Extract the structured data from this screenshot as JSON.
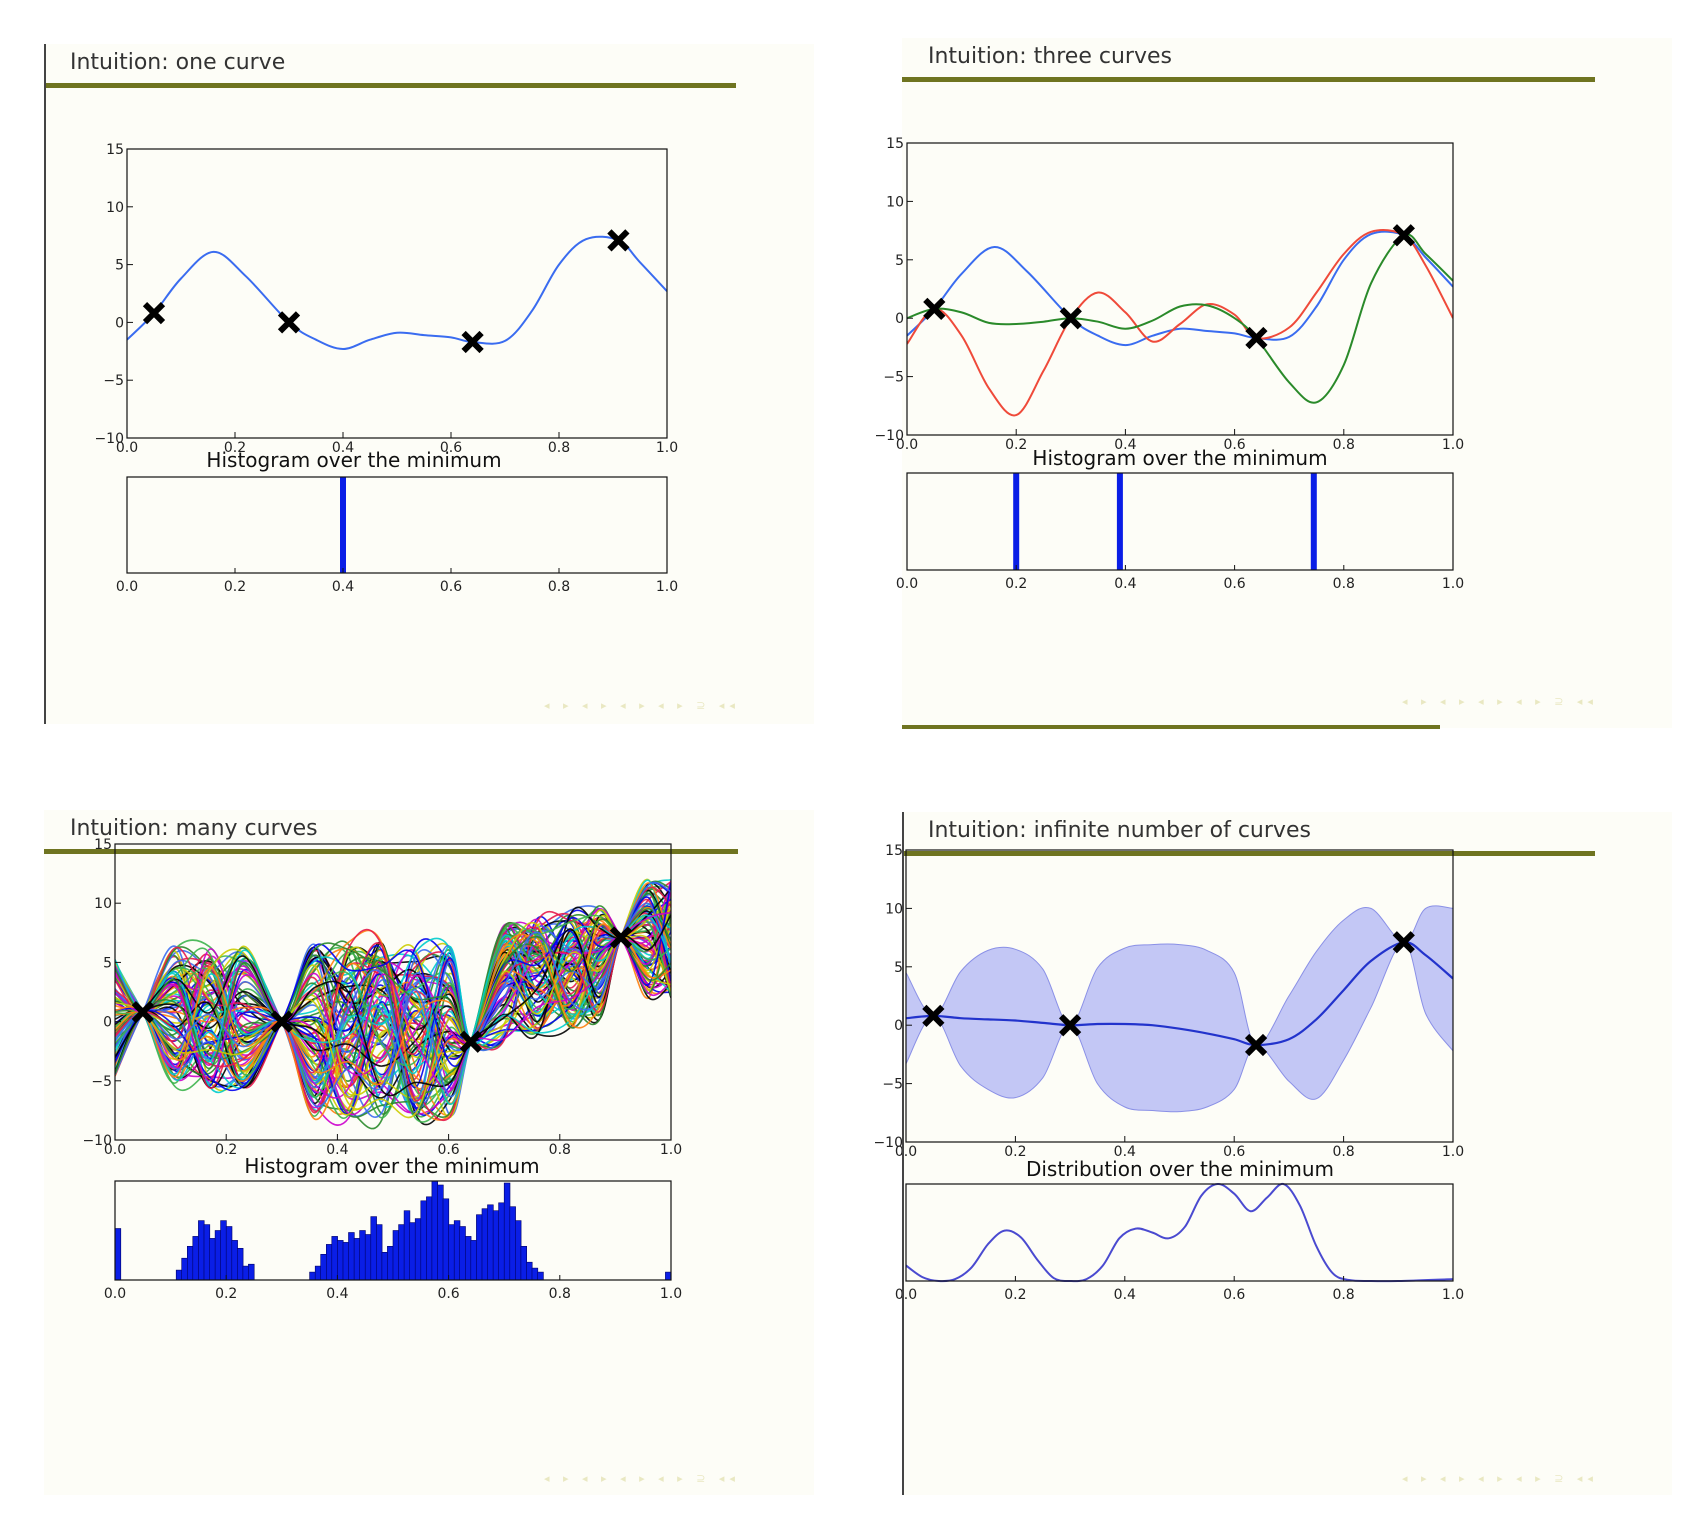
{
  "slides": [
    {
      "title": "Intuition: one curve",
      "hist_title": "Histogram over the minimum",
      "footer": "◂ ▸ ◂ ▸ ◂ ▸ ◂ ▸ ⊇ ◂◂"
    },
    {
      "title": "Intuition: three curves",
      "hist_title": "Histogram over the minimum",
      "footer": "◂ ▸ ◂ ▸ ◂ ▸ ◂ ▸ ⊇ ◂◂"
    },
    {
      "title": "Intuition: many curves",
      "hist_title": "Histogram over the minimum",
      "footer": "◂ ▸ ◂ ▸ ◂ ▸ ◂ ▸ ⊇ ◂◂"
    },
    {
      "title": "Intuition: infinite number of curves",
      "hist_title": "Distribution over the minimum",
      "footer": "◂ ▸ ◂ ▸ ◂ ▸ ◂ ▸ ⊇ ◂◂"
    }
  ],
  "axes": {
    "x_ticks": [
      "0.0",
      "0.2",
      "0.4",
      "0.6",
      "0.8",
      "1.0"
    ],
    "y_ticks": [
      "15",
      "10",
      "5",
      "0",
      "−5",
      "−10"
    ],
    "x_values": [
      0,
      0.2,
      0.4,
      0.6,
      0.8,
      1.0
    ],
    "y_values": [
      15,
      10,
      5,
      0,
      -5,
      -10
    ]
  },
  "colors": {
    "title_rule": "#6f7420",
    "hist_bar": "#0a1ee6",
    "curve_blue": "#3a6cf0",
    "curve_red": "#ef4a3a",
    "curve_green": "#2a8a2a",
    "mean_line": "#2233cc",
    "band_fill": "#b9bdf5",
    "band_edge": "#8a90e6"
  },
  "chart_data": [
    {
      "type": "line",
      "title": "Intuition: one curve",
      "xlim": [
        0,
        1
      ],
      "ylim": [
        -10,
        15
      ],
      "observations": {
        "x": [
          0.05,
          0.3,
          0.64,
          0.91
        ],
        "y": [
          0.8,
          0.0,
          -1.7,
          7.1
        ]
      },
      "series": [
        {
          "color": "#3a6cf0",
          "x": [
            0,
            0.05,
            0.1,
            0.16,
            0.22,
            0.3,
            0.35,
            0.4,
            0.45,
            0.5,
            0.55,
            0.6,
            0.64,
            0.7,
            0.75,
            0.8,
            0.85,
            0.91,
            0.95,
            1.0
          ],
          "y": [
            -1.5,
            0.8,
            3.8,
            6.1,
            4.0,
            0.0,
            -1.5,
            -2.3,
            -1.5,
            -0.9,
            -1.1,
            -1.3,
            -1.7,
            -1.6,
            1.0,
            5.0,
            7.2,
            7.1,
            5.2,
            2.7
          ]
        }
      ],
      "histogram": {
        "title": "Histogram over the minimum",
        "bins": [
          {
            "x": 0.4,
            "height": 1.0
          }
        ]
      }
    },
    {
      "type": "line",
      "title": "Intuition: three curves",
      "xlim": [
        0,
        1
      ],
      "ylim": [
        -10,
        15
      ],
      "observations": {
        "x": [
          0.05,
          0.3,
          0.64,
          0.91
        ],
        "y": [
          0.8,
          0.0,
          -1.7,
          7.1
        ]
      },
      "series": [
        {
          "color": "#3a6cf0",
          "x": [
            0,
            0.05,
            0.1,
            0.16,
            0.22,
            0.3,
            0.35,
            0.4,
            0.45,
            0.5,
            0.55,
            0.6,
            0.64,
            0.7,
            0.75,
            0.8,
            0.85,
            0.91,
            0.95,
            1.0
          ],
          "y": [
            -1.5,
            0.8,
            3.8,
            6.1,
            4.0,
            0.0,
            -1.5,
            -2.3,
            -1.5,
            -0.9,
            -1.1,
            -1.3,
            -1.7,
            -1.6,
            1.0,
            5.0,
            7.2,
            7.1,
            5.2,
            2.7
          ]
        },
        {
          "color": "#ef4a3a",
          "x": [
            0,
            0.05,
            0.1,
            0.15,
            0.2,
            0.25,
            0.3,
            0.35,
            0.4,
            0.45,
            0.5,
            0.55,
            0.6,
            0.64,
            0.7,
            0.75,
            0.8,
            0.85,
            0.91,
            0.95,
            1.0
          ],
          "y": [
            -2.2,
            0.8,
            -1.5,
            -6.0,
            -8.3,
            -4.5,
            0.0,
            2.2,
            0.5,
            -2.0,
            -0.5,
            1.2,
            0.3,
            -1.7,
            -0.8,
            2.2,
            5.5,
            7.4,
            7.1,
            4.5,
            0.0
          ]
        },
        {
          "color": "#2a8a2a",
          "x": [
            0,
            0.05,
            0.1,
            0.15,
            0.2,
            0.25,
            0.3,
            0.35,
            0.4,
            0.45,
            0.5,
            0.55,
            0.6,
            0.64,
            0.7,
            0.75,
            0.8,
            0.85,
            0.91,
            0.95,
            1.0
          ],
          "y": [
            0.0,
            0.8,
            0.5,
            -0.4,
            -0.5,
            -0.3,
            0.0,
            -0.3,
            -0.9,
            -0.2,
            1.0,
            1.1,
            0.0,
            -1.7,
            -5.5,
            -7.2,
            -4.0,
            3.0,
            7.1,
            5.5,
            3.2
          ]
        }
      ],
      "histogram": {
        "title": "Histogram over the minimum",
        "bins": [
          {
            "x": 0.2,
            "height": 1.0
          },
          {
            "x": 0.39,
            "height": 1.0
          },
          {
            "x": 0.745,
            "height": 1.0
          }
        ]
      }
    },
    {
      "type": "line",
      "title": "Intuition: many curves",
      "xlim": [
        0,
        1
      ],
      "ylim": [
        -10,
        15
      ],
      "observations": {
        "x": [
          0.05,
          0.3,
          0.64,
          0.91
        ],
        "y": [
          0.8,
          0.0,
          -1.7,
          7.1
        ]
      },
      "many_curves": {
        "count": 100,
        "colors": [
          "#e6194b",
          "#3cb44b",
          "#0000ee",
          "#00cccc",
          "#cc00cc",
          "#cccc00",
          "#000000",
          "#ff7f0e",
          "#2a8a2a",
          "#3a6cf0"
        ]
      },
      "histogram": {
        "title": "Histogram over the minimum",
        "bins": [
          {
            "x": 0.0,
            "height": 0.52
          },
          {
            "x": 0.11,
            "height": 0.1
          },
          {
            "x": 0.12,
            "height": 0.22
          },
          {
            "x": 0.13,
            "height": 0.34
          },
          {
            "x": 0.14,
            "height": 0.44
          },
          {
            "x": 0.15,
            "height": 0.6
          },
          {
            "x": 0.16,
            "height": 0.56
          },
          {
            "x": 0.17,
            "height": 0.42
          },
          {
            "x": 0.18,
            "height": 0.5
          },
          {
            "x": 0.19,
            "height": 0.6
          },
          {
            "x": 0.2,
            "height": 0.54
          },
          {
            "x": 0.21,
            "height": 0.4
          },
          {
            "x": 0.22,
            "height": 0.32
          },
          {
            "x": 0.23,
            "height": 0.14
          },
          {
            "x": 0.24,
            "height": 0.16
          },
          {
            "x": 0.35,
            "height": 0.08
          },
          {
            "x": 0.36,
            "height": 0.14
          },
          {
            "x": 0.37,
            "height": 0.26
          },
          {
            "x": 0.38,
            "height": 0.36
          },
          {
            "x": 0.39,
            "height": 0.44
          },
          {
            "x": 0.4,
            "height": 0.4
          },
          {
            "x": 0.41,
            "height": 0.38
          },
          {
            "x": 0.42,
            "height": 0.48
          },
          {
            "x": 0.43,
            "height": 0.42
          },
          {
            "x": 0.44,
            "height": 0.5
          },
          {
            "x": 0.45,
            "height": 0.46
          },
          {
            "x": 0.46,
            "height": 0.64
          },
          {
            "x": 0.47,
            "height": 0.56
          },
          {
            "x": 0.48,
            "height": 0.28
          },
          {
            "x": 0.49,
            "height": 0.34
          },
          {
            "x": 0.5,
            "height": 0.5
          },
          {
            "x": 0.51,
            "height": 0.56
          },
          {
            "x": 0.52,
            "height": 0.7
          },
          {
            "x": 0.53,
            "height": 0.58
          },
          {
            "x": 0.54,
            "height": 0.62
          },
          {
            "x": 0.55,
            "height": 0.8
          },
          {
            "x": 0.56,
            "height": 0.84
          },
          {
            "x": 0.57,
            "height": 1.0
          },
          {
            "x": 0.58,
            "height": 0.96
          },
          {
            "x": 0.59,
            "height": 0.82
          },
          {
            "x": 0.6,
            "height": 0.56
          },
          {
            "x": 0.61,
            "height": 0.6
          },
          {
            "x": 0.62,
            "height": 0.54
          },
          {
            "x": 0.63,
            "height": 0.44
          },
          {
            "x": 0.64,
            "height": 0.4
          },
          {
            "x": 0.65,
            "height": 0.66
          },
          {
            "x": 0.66,
            "height": 0.72
          },
          {
            "x": 0.67,
            "height": 0.76
          },
          {
            "x": 0.68,
            "height": 0.7
          },
          {
            "x": 0.69,
            "height": 0.78
          },
          {
            "x": 0.7,
            "height": 0.98
          },
          {
            "x": 0.71,
            "height": 0.74
          },
          {
            "x": 0.72,
            "height": 0.6
          },
          {
            "x": 0.73,
            "height": 0.34
          },
          {
            "x": 0.74,
            "height": 0.18
          },
          {
            "x": 0.75,
            "height": 0.12
          },
          {
            "x": 0.76,
            "height": 0.08
          },
          {
            "x": 0.99,
            "height": 0.08
          }
        ]
      }
    },
    {
      "type": "area",
      "title": "Intuition: infinite number of curves",
      "xlim": [
        0,
        1
      ],
      "ylim": [
        -10,
        15
      ],
      "observations": {
        "x": [
          0.05,
          0.3,
          0.64,
          0.91
        ],
        "y": [
          0.8,
          0.0,
          -1.7,
          7.1
        ]
      },
      "mean": {
        "color": "#2233cc",
        "x": [
          0,
          0.05,
          0.1,
          0.15,
          0.2,
          0.25,
          0.3,
          0.35,
          0.4,
          0.45,
          0.5,
          0.55,
          0.6,
          0.64,
          0.7,
          0.75,
          0.8,
          0.85,
          0.91,
          0.95,
          1.0
        ],
        "y": [
          0.6,
          0.8,
          0.6,
          0.5,
          0.4,
          0.2,
          0.0,
          0.1,
          0.1,
          0.0,
          -0.3,
          -0.7,
          -1.2,
          -1.7,
          -1.2,
          0.5,
          3.0,
          5.5,
          7.1,
          6.0,
          4.0
        ]
      },
      "band_upper": {
        "x": [
          0,
          0.05,
          0.1,
          0.15,
          0.2,
          0.25,
          0.3,
          0.35,
          0.4,
          0.45,
          0.5,
          0.55,
          0.6,
          0.64,
          0.7,
          0.75,
          0.8,
          0.85,
          0.91,
          0.95,
          1.0
        ],
        "y": [
          4.5,
          0.8,
          4.6,
          6.4,
          6.5,
          4.8,
          0.0,
          4.9,
          6.6,
          6.9,
          6.9,
          6.4,
          4.5,
          -1.7,
          2.5,
          6.3,
          9.0,
          10.0,
          7.1,
          10.0,
          10.0
        ]
      },
      "band_lower": {
        "x": [
          0,
          0.05,
          0.1,
          0.15,
          0.2,
          0.25,
          0.3,
          0.35,
          0.4,
          0.45,
          0.5,
          0.55,
          0.6,
          0.64,
          0.7,
          0.75,
          0.8,
          0.85,
          0.91,
          0.95,
          1.0
        ],
        "y": [
          -3.3,
          0.8,
          -3.5,
          -5.5,
          -6.2,
          -4.5,
          0.0,
          -5.0,
          -7.0,
          -7.3,
          -7.4,
          -7.0,
          -5.5,
          -1.7,
          -4.8,
          -6.3,
          -3.0,
          1.5,
          7.1,
          1.0,
          -2.2
        ]
      },
      "distribution": {
        "title": "Distribution over the minimum",
        "x": [
          0,
          0.03,
          0.06,
          0.09,
          0.12,
          0.15,
          0.18,
          0.21,
          0.24,
          0.27,
          0.3,
          0.33,
          0.36,
          0.39,
          0.42,
          0.45,
          0.48,
          0.51,
          0.54,
          0.57,
          0.6,
          0.63,
          0.66,
          0.69,
          0.72,
          0.75,
          0.78,
          0.81,
          0.85,
          0.9,
          1.0
        ],
        "y": [
          0.16,
          0.04,
          0.0,
          0.02,
          0.14,
          0.38,
          0.52,
          0.45,
          0.22,
          0.03,
          0.0,
          0.02,
          0.16,
          0.44,
          0.54,
          0.5,
          0.44,
          0.56,
          0.88,
          1.0,
          0.9,
          0.72,
          0.86,
          1.0,
          0.78,
          0.36,
          0.08,
          0.01,
          0.0,
          0.0,
          0.02
        ]
      }
    }
  ]
}
